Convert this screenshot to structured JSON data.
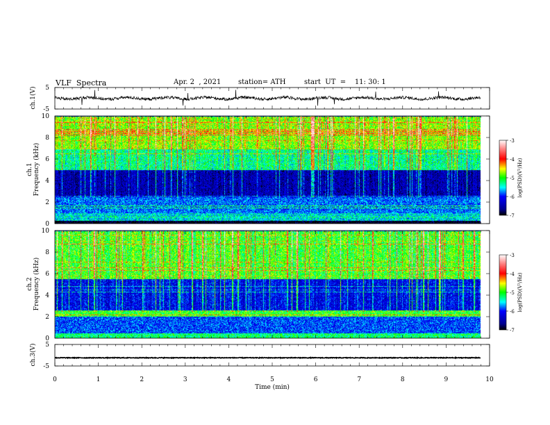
{
  "header": {
    "title": "VLF  Spectra",
    "date": "Apr. 2  , 2021",
    "station": "station= ATH",
    "start_ut": "start  UT  =    11: 30: 1"
  },
  "chart_data": [
    {
      "type": "line",
      "name": "ch1-waveform",
      "ylabel": "ch.1(V)",
      "ylim": [
        -5,
        5
      ],
      "yticks": [
        "5",
        "-5"
      ],
      "xlim": [
        0,
        10
      ],
      "xticks": [
        "0",
        "1",
        "2",
        "3",
        "4",
        "5",
        "6",
        "7",
        "8",
        "9",
        "10"
      ],
      "trace_level_V": 0.0,
      "data_end_min": 9.8
    },
    {
      "type": "heatmap",
      "name": "ch1-spectrogram",
      "ylabel": "ch.1\nFrequency  (kHz)",
      "ylim": [
        0,
        10
      ],
      "yticks": [
        "0",
        "2",
        "4",
        "6",
        "8",
        "10"
      ],
      "xlim": [
        0,
        10
      ],
      "data_end_min": 9.8,
      "colorbar": {
        "label": "log(PSD)(V²/Hz)",
        "range": [
          -7,
          -3
        ],
        "ticks": [
          "-3",
          "-4",
          "-5",
          "-6",
          "-7"
        ]
      },
      "typical_log_psd_by_band_kHz": [
        {
          "band": [
            0,
            0.3
          ],
          "value": -7
        },
        {
          "band": [
            0.3,
            1.0
          ],
          "value": -5.5
        },
        {
          "band": [
            1.0,
            2.5
          ],
          "value": -5.8
        },
        {
          "band": [
            2.5,
            5.0
          ],
          "value": -6.5
        },
        {
          "band": [
            5.0,
            7.0
          ],
          "value": -5.3
        },
        {
          "band": [
            7.0,
            10
          ],
          "value": -4.8
        }
      ]
    },
    {
      "type": "heatmap",
      "name": "ch2-spectrogram",
      "ylabel": "ch.2\nFrequency  (kHz)",
      "ylim": [
        0,
        10
      ],
      "yticks": [
        "0",
        "2",
        "4",
        "6",
        "8",
        "10"
      ],
      "xlim": [
        0,
        10
      ],
      "data_end_min": 9.8,
      "colorbar": {
        "label": "log(PSD)(V²/Hz)",
        "range": [
          -7,
          -3
        ],
        "ticks": [
          "-3",
          "-4",
          "-5",
          "-6",
          "-7"
        ]
      },
      "typical_log_psd_by_band_kHz": [
        {
          "band": [
            0,
            0.5
          ],
          "value": -5.2
        },
        {
          "band": [
            0.5,
            2.0
          ],
          "value": -5.9
        },
        {
          "band": [
            2.0,
            2.6
          ],
          "value": -5.0
        },
        {
          "band": [
            2.6,
            5.5
          ],
          "value": -6.2
        },
        {
          "band": [
            5.5,
            10
          ],
          "value": -5.0
        }
      ]
    },
    {
      "type": "line",
      "name": "ch3-waveform",
      "ylabel": "ch.3(V)",
      "ylim": [
        -5,
        5
      ],
      "yticks": [
        "5",
        "-5"
      ],
      "xlim": [
        0,
        10
      ],
      "xticks": [
        "0",
        "1",
        "2",
        "3",
        "4",
        "5",
        "6",
        "7",
        "8",
        "9",
        "10"
      ],
      "xlabel": "Time  (min)",
      "trace_level_V": -1.2,
      "data_end_min": 9.8
    }
  ]
}
